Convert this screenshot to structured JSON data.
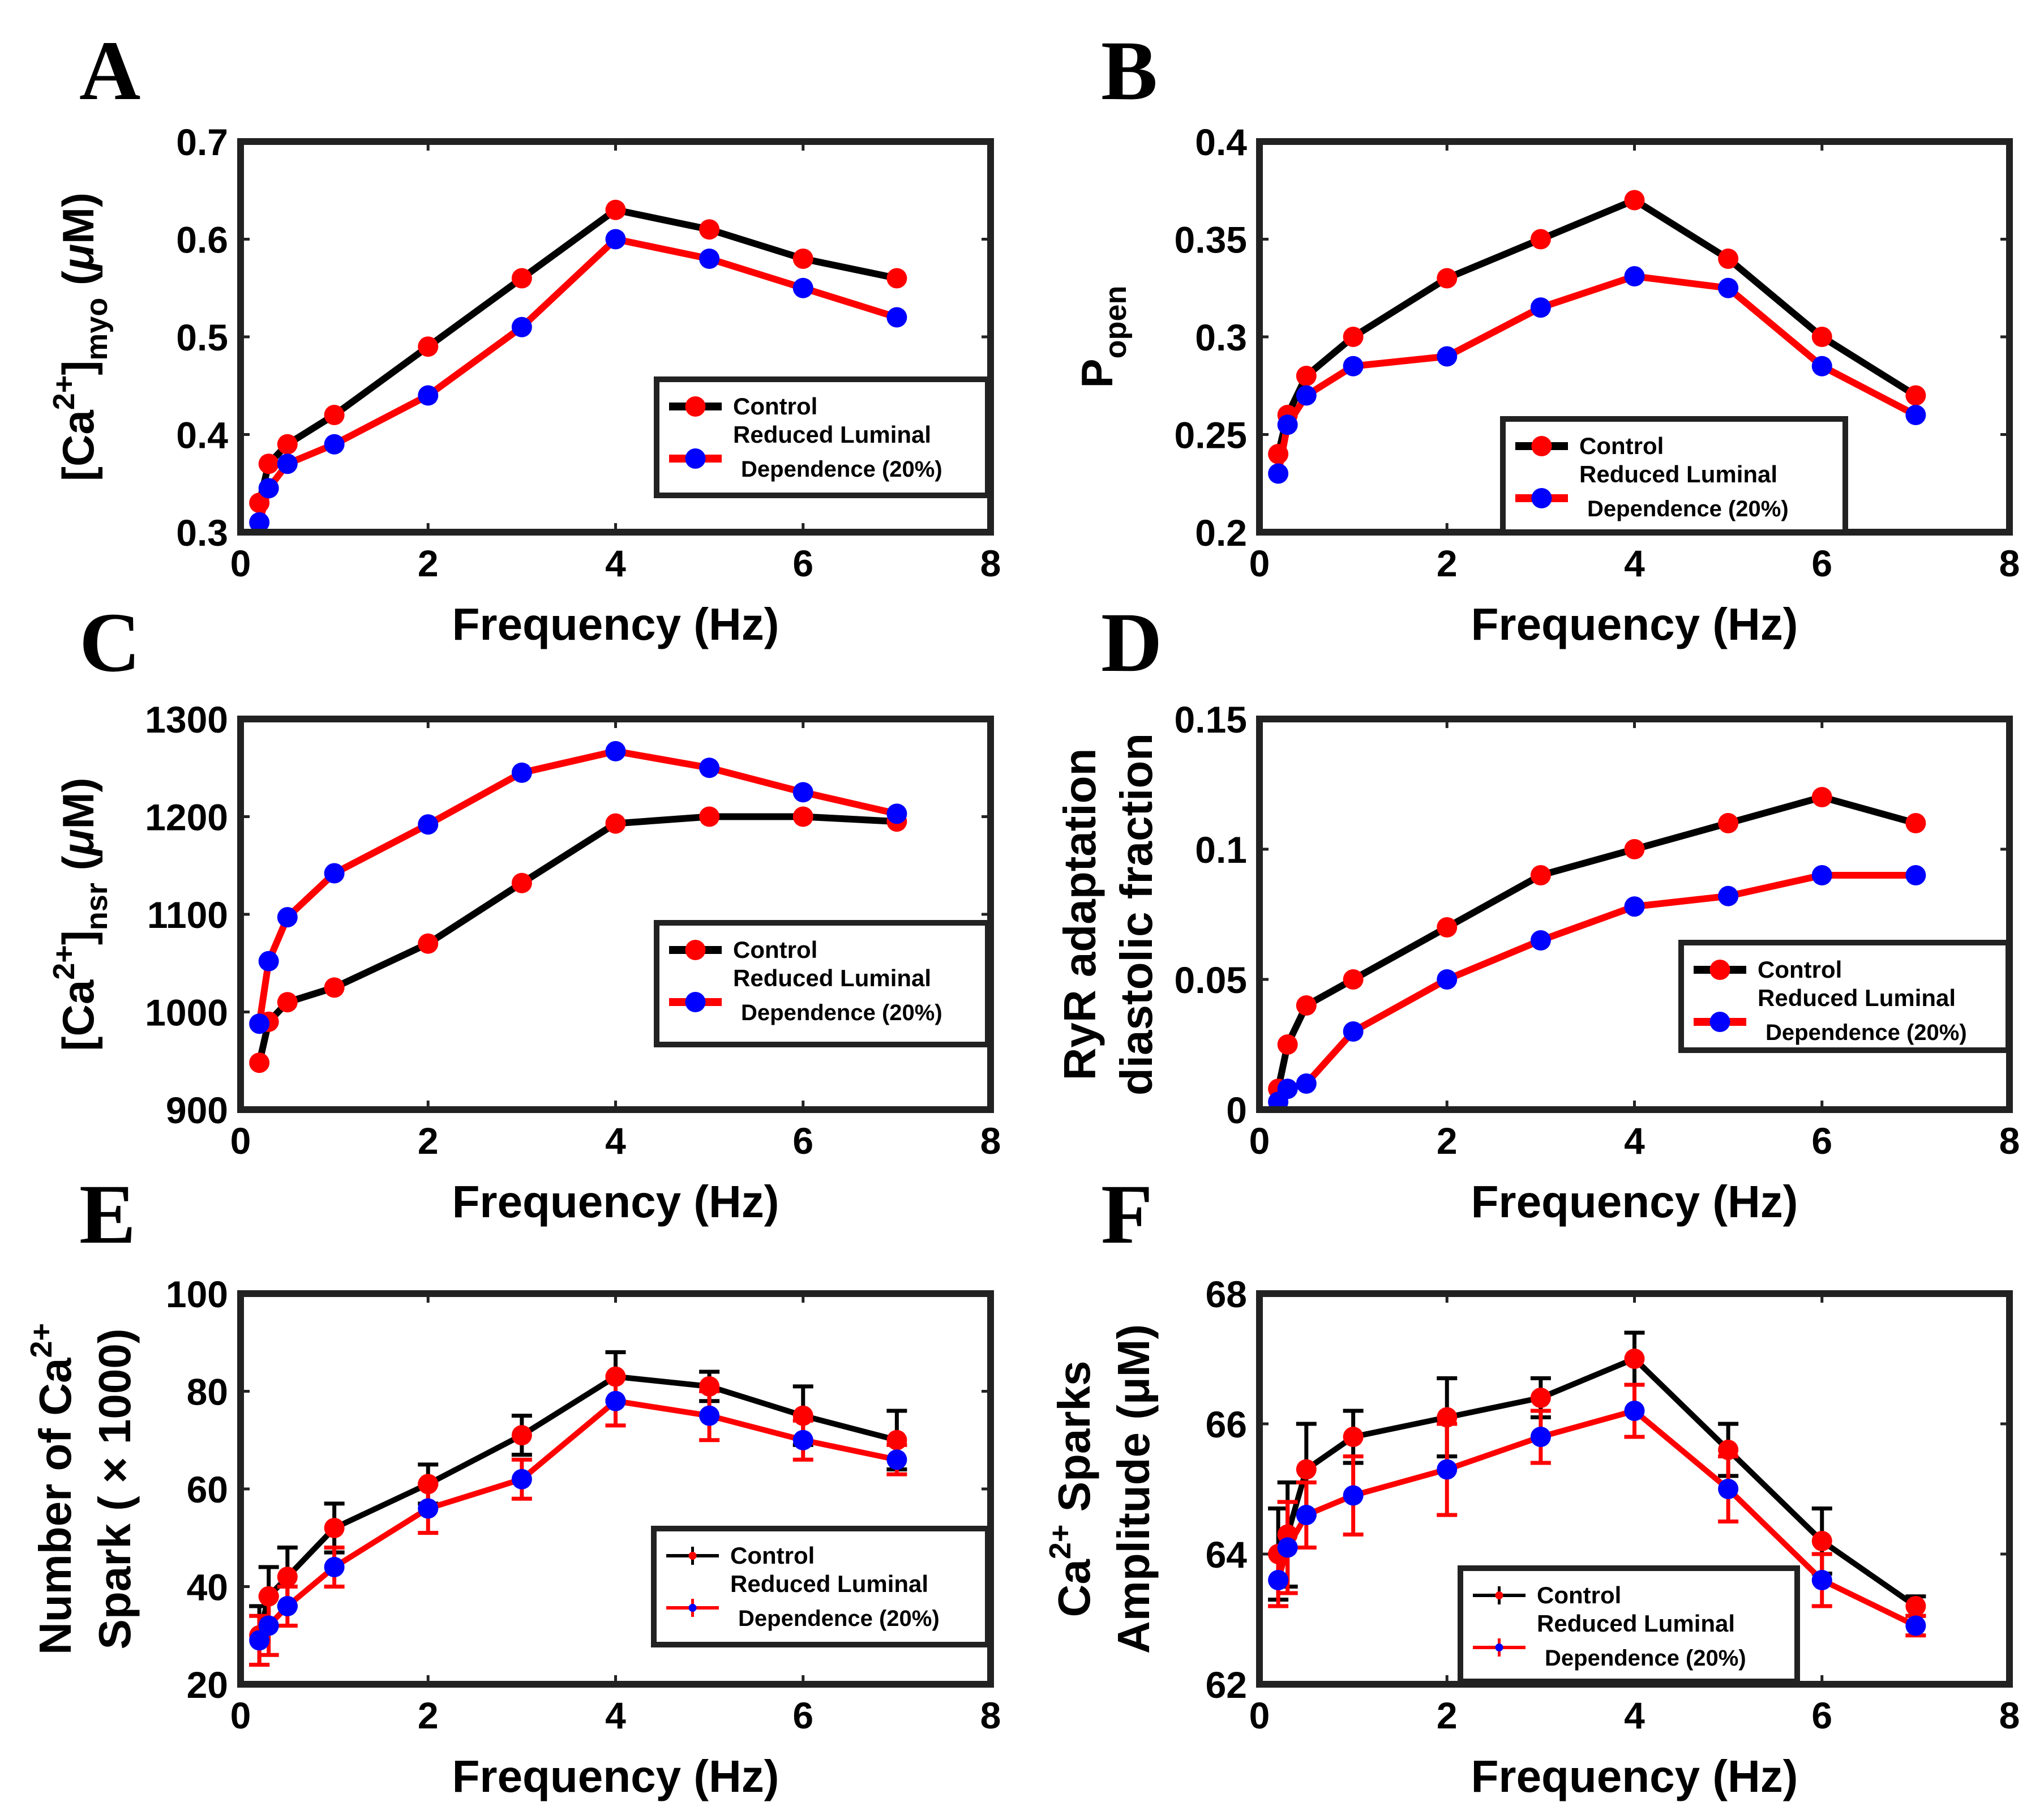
{
  "figure": {
    "legend_control": "Control",
    "legend_reduced_line1": "Reduced Luminal",
    "legend_reduced_line2": "Dependence (20%)",
    "colors": {
      "control": "#000000",
      "control_marker": "#ff0000",
      "reduced": "#ff0000",
      "reduced_marker": "#0000ff"
    }
  },
  "chart_data": [
    {
      "panel": "A",
      "type": "line",
      "xlabel": "Frequency (Hz)",
      "ylabel_parts": [
        "[Ca",
        "2+",
        "]",
        "myo",
        " (",
        "μ",
        "M)"
      ],
      "xlim": [
        0,
        8
      ],
      "ylim": [
        0.3,
        0.7
      ],
      "xticks": [
        0,
        2,
        4,
        6,
        8
      ],
      "yticks": [
        0.3,
        0.4,
        0.5,
        0.6,
        0.7
      ],
      "ytick_labels": [
        "0.3",
        "0.4",
        "0.5",
        "0.6",
        "0.7"
      ],
      "legend_style": "marker",
      "legend_position": "lower-right",
      "x": [
        0.2,
        0.3,
        0.5,
        1,
        2,
        3,
        4,
        5,
        6,
        7
      ],
      "series": [
        {
          "name": "Control",
          "values": [
            0.33,
            0.37,
            0.39,
            0.42,
            0.49,
            0.56,
            0.63,
            0.61,
            0.58,
            0.56
          ]
        },
        {
          "name": "Reduced Luminal Dependence (20%)",
          "values": [
            0.31,
            0.345,
            0.37,
            0.39,
            0.44,
            0.51,
            0.6,
            0.58,
            0.55,
            0.52
          ]
        }
      ]
    },
    {
      "panel": "B",
      "type": "line",
      "xlabel": "Frequency (Hz)",
      "ylabel_parts": [
        "P",
        "",
        "",
        "open",
        "",
        "",
        ""
      ],
      "xlim": [
        0,
        8
      ],
      "ylim": [
        0.2,
        0.4
      ],
      "xticks": [
        0,
        2,
        4,
        6,
        8
      ],
      "yticks": [
        0.2,
        0.25,
        0.3,
        0.35,
        0.4
      ],
      "ytick_labels": [
        "0.2",
        "0.25",
        "0.3",
        "0.35",
        "0.4"
      ],
      "legend_style": "marker",
      "legend_position": "lower-right",
      "x": [
        0.2,
        0.3,
        0.5,
        1,
        2,
        3,
        4,
        5,
        6,
        7
      ],
      "series": [
        {
          "name": "Control",
          "values": [
            0.24,
            0.26,
            0.28,
            0.3,
            0.33,
            0.35,
            0.37,
            0.34,
            0.3,
            0.27
          ]
        },
        {
          "name": "Reduced Luminal Dependence (20%)",
          "values": [
            0.23,
            0.255,
            0.27,
            0.285,
            0.29,
            0.315,
            0.331,
            0.325,
            0.285,
            0.26
          ]
        }
      ]
    },
    {
      "panel": "C",
      "type": "line",
      "xlabel": "Frequency (Hz)",
      "ylabel_parts": [
        "[Ca",
        "2+",
        "]",
        "nsr",
        " (",
        "μ",
        "M)"
      ],
      "xlim": [
        0,
        8
      ],
      "ylim": [
        900,
        1300
      ],
      "xticks": [
        0,
        2,
        4,
        6,
        8
      ],
      "yticks": [
        900,
        1000,
        1100,
        1200,
        1300
      ],
      "ytick_labels": [
        "900",
        "1000",
        "1100",
        "1200",
        "1300"
      ],
      "legend_style": "marker",
      "legend_position": "lower-right",
      "x": [
        0.2,
        0.3,
        0.5,
        1,
        2,
        3,
        4,
        5,
        6,
        7
      ],
      "series": [
        {
          "name": "Control",
          "values": [
            948,
            990,
            1010,
            1025,
            1070,
            1132,
            1193,
            1200,
            1200,
            1195
          ]
        },
        {
          "name": "Reduced Luminal Dependence (20%)",
          "values": [
            988,
            1052,
            1097,
            1142,
            1192,
            1245,
            1267,
            1250,
            1225,
            1203
          ]
        }
      ]
    },
    {
      "panel": "D",
      "type": "line",
      "xlabel": "Frequency (Hz)",
      "ylabel_lines": [
        "RyR adaptation",
        "diastolic fraction"
      ],
      "xlim": [
        0,
        8
      ],
      "ylim": [
        0,
        0.15
      ],
      "xticks": [
        0,
        2,
        4,
        6,
        8
      ],
      "yticks": [
        0,
        0.05,
        0.1,
        0.15
      ],
      "ytick_labels": [
        "0",
        "0.05",
        "0.1",
        "0.15"
      ],
      "legend_style": "marker",
      "legend_position": "lower-right",
      "x": [
        0.2,
        0.3,
        0.5,
        1,
        2,
        3,
        4,
        5,
        6,
        7
      ],
      "series": [
        {
          "name": "Control",
          "values": [
            0.008,
            0.025,
            0.04,
            0.05,
            0.07,
            0.09,
            0.1,
            0.11,
            0.12,
            0.11
          ]
        },
        {
          "name": "Reduced Luminal Dependence (20%)",
          "values": [
            0.003,
            0.008,
            0.01,
            0.03,
            0.05,
            0.065,
            0.078,
            0.082,
            0.09,
            0.09
          ]
        }
      ]
    },
    {
      "panel": "E",
      "type": "line",
      "xlabel": "Frequency (Hz)",
      "ylabel_line1_parts": [
        "Number of Ca",
        "2+"
      ],
      "ylabel_line2": "Spark ( × 1000)",
      "xlim": [
        0,
        8
      ],
      "ylim": [
        20,
        100
      ],
      "xticks": [
        0,
        2,
        4,
        6,
        8
      ],
      "yticks": [
        20,
        40,
        60,
        80,
        100
      ],
      "ytick_labels": [
        "20",
        "40",
        "60",
        "80",
        "100"
      ],
      "legend_style": "errorbar",
      "legend_position": "lower-right",
      "x": [
        0.2,
        0.3,
        0.5,
        1,
        2,
        3,
        4,
        5,
        6,
        7
      ],
      "series": [
        {
          "name": "Control",
          "values": [
            30,
            38,
            42,
            52,
            61,
            71,
            83,
            81,
            75,
            70
          ],
          "errors": [
            6,
            6,
            6,
            5,
            4,
            4,
            5,
            3,
            6,
            6
          ]
        },
        {
          "name": "Reduced Luminal Dependence (20%)",
          "values": [
            29,
            32,
            36,
            44,
            56,
            62,
            78,
            75,
            70,
            66
          ],
          "errors": [
            5,
            6,
            4,
            4,
            5,
            4,
            5,
            5,
            4,
            3
          ]
        }
      ]
    },
    {
      "panel": "F",
      "type": "line",
      "xlabel": "Frequency (Hz)",
      "ylabel_line1_parts": [
        "Ca",
        "2+",
        " Sparks"
      ],
      "ylabel_line2": "Amplitude (μM)",
      "xlim": [
        0,
        8
      ],
      "ylim": [
        62,
        68
      ],
      "xticks": [
        0,
        2,
        4,
        6,
        8
      ],
      "yticks": [
        62,
        64,
        66,
        68
      ],
      "ytick_labels": [
        "62",
        "64",
        "66",
        "68"
      ],
      "legend_style": "errorbar",
      "legend_position": "lower-right",
      "x": [
        0.2,
        0.3,
        0.5,
        1,
        2,
        3,
        4,
        5,
        6,
        7
      ],
      "series": [
        {
          "name": "Control",
          "values": [
            64.0,
            64.3,
            65.3,
            65.8,
            66.1,
            66.4,
            67.0,
            65.6,
            64.2,
            63.2
          ],
          "errors": [
            0.7,
            0.8,
            0.7,
            0.4,
            0.6,
            0.3,
            0.4,
            0.4,
            0.5,
            0.15
          ]
        },
        {
          "name": "Reduced Luminal Dependence (20%)",
          "values": [
            63.6,
            64.1,
            64.6,
            64.9,
            65.3,
            65.8,
            66.2,
            65.0,
            63.6,
            62.9
          ],
          "errors": [
            0.4,
            0.7,
            0.5,
            0.6,
            0.7,
            0.4,
            0.4,
            0.5,
            0.4,
            0.15
          ]
        }
      ]
    }
  ]
}
